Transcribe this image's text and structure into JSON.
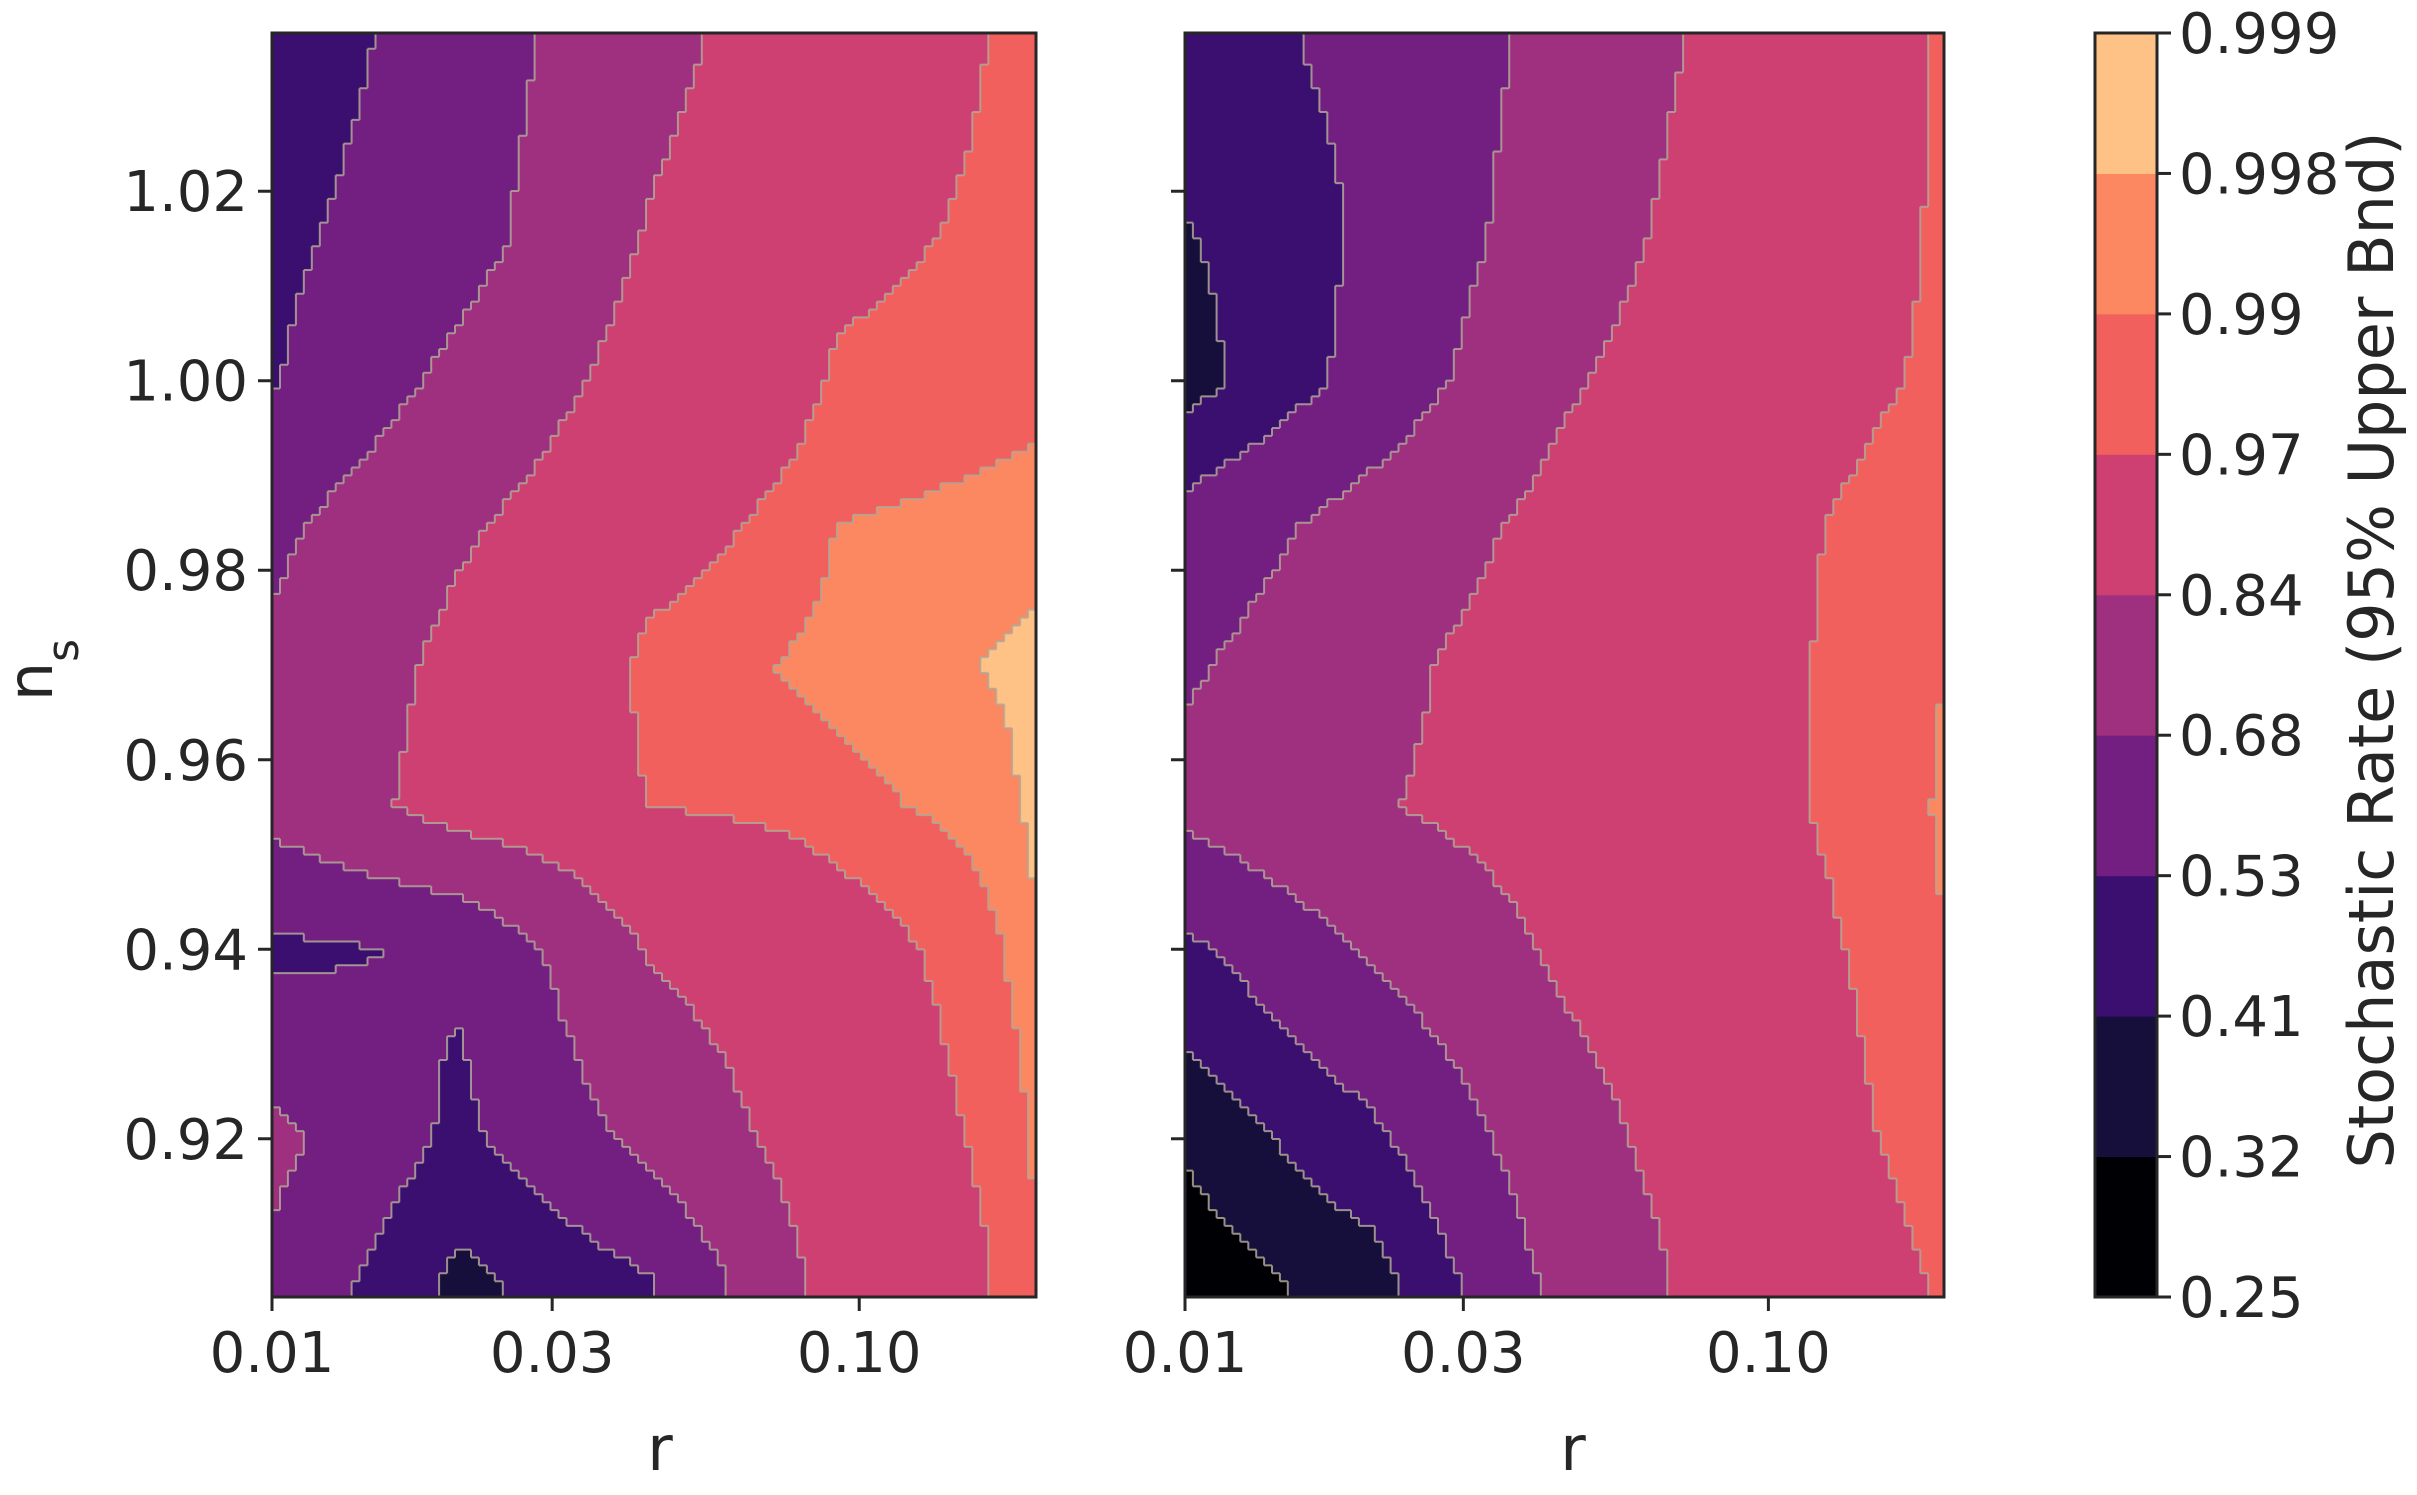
{
  "chart_data": [
    {
      "type": "heatmap",
      "subtype": "filled-contour",
      "panel": "left",
      "title": "",
      "xlabel": "r",
      "ylabel": "n_s",
      "x_scale": "log",
      "xlim": [
        0.01,
        0.2
      ],
      "ylim": [
        0.9033,
        1.0367
      ],
      "xticks": [
        {
          "value": 0.01,
          "label": "0.01"
        },
        {
          "value": 0.03,
          "label": "0.03"
        },
        {
          "value": 0.1,
          "label": "0.10"
        }
      ],
      "yticks": [
        {
          "value": 0.92,
          "label": "0.92"
        },
        {
          "value": 0.94,
          "label": "0.94"
        },
        {
          "value": 0.96,
          "label": "0.96"
        },
        {
          "value": 0.98,
          "label": "0.98"
        },
        {
          "value": 1.0,
          "label": "1.00"
        },
        {
          "value": 1.02,
          "label": "1.02"
        }
      ],
      "x": [
        0.01,
        0.0209,
        0.0437,
        0.0915,
        0.2
      ],
      "y": [
        0.905,
        0.92,
        0.94,
        0.955,
        0.97,
        0.985,
        1.0,
        1.015,
        1.035
      ],
      "values": [
        [
          0.65,
          0.38,
          0.52,
          0.9,
          0.99
        ],
        [
          0.72,
          0.5,
          0.72,
          0.93,
          0.992
        ],
        [
          0.5,
          0.55,
          0.85,
          0.95,
          0.998
        ],
        [
          0.73,
          0.9,
          0.97,
          0.985,
          0.9992
        ],
        [
          0.7,
          0.88,
          0.98,
          0.995,
          0.9993
        ],
        [
          0.65,
          0.82,
          0.95,
          0.99,
          0.996
        ],
        [
          0.52,
          0.72,
          0.9,
          0.975,
          0.985
        ],
        [
          0.5,
          0.62,
          0.85,
          0.96,
          0.98
        ],
        [
          0.45,
          0.6,
          0.8,
          0.94,
          0.98
        ]
      ]
    },
    {
      "type": "heatmap",
      "subtype": "filled-contour",
      "panel": "right",
      "title": "",
      "xlabel": "r",
      "ylabel": "",
      "x_scale": "log",
      "xlim": [
        0.01,
        0.2
      ],
      "ylim": [
        0.9033,
        1.0367
      ],
      "xticks": [
        {
          "value": 0.01,
          "label": "0.01"
        },
        {
          "value": 0.03,
          "label": "0.03"
        },
        {
          "value": 0.1,
          "label": "0.10"
        }
      ],
      "yticks": [
        {
          "value": 0.92,
          "label": ""
        },
        {
          "value": 0.94,
          "label": ""
        },
        {
          "value": 0.96,
          "label": ""
        },
        {
          "value": 0.98,
          "label": ""
        },
        {
          "value": 1.0,
          "label": ""
        },
        {
          "value": 1.02,
          "label": ""
        }
      ],
      "x": [
        0.01,
        0.0209,
        0.0437,
        0.0915,
        0.2
      ],
      "y": [
        0.905,
        0.92,
        0.94,
        0.955,
        0.97,
        0.985,
        1.0,
        1.015,
        1.035
      ],
      "values": [
        [
          0.27,
          0.36,
          0.72,
          0.92,
          0.975
        ],
        [
          0.33,
          0.5,
          0.78,
          0.94,
          0.985
        ],
        [
          0.5,
          0.7,
          0.86,
          0.95,
          0.99
        ],
        [
          0.72,
          0.83,
          0.9,
          0.96,
          0.992
        ],
        [
          0.66,
          0.8,
          0.92,
          0.96,
          0.99
        ],
        [
          0.58,
          0.74,
          0.88,
          0.96,
          0.985
        ],
        [
          0.36,
          0.58,
          0.82,
          0.95,
          0.975
        ],
        [
          0.4,
          0.55,
          0.76,
          0.93,
          0.975
        ],
        [
          0.48,
          0.56,
          0.72,
          0.9,
          0.975
        ]
      ]
    }
  ],
  "colorbar": {
    "label": "Stochastic Rate (95% Upper Bnd)",
    "levels": [
      0.25,
      0.32,
      0.41,
      0.53,
      0.68,
      0.84,
      0.97,
      0.99,
      0.998,
      0.999
    ],
    "tick_labels": [
      "0.25",
      "0.32",
      "0.41",
      "0.53",
      "0.68",
      "0.84",
      "0.97",
      "0.99",
      "0.998",
      "0.999"
    ],
    "colors": [
      "#000004",
      "#160f3b",
      "#3b0f70",
      "#721f81",
      "#9f2f7f",
      "#cd4071",
      "#f1605d",
      "#fb8861",
      "#fec287"
    ],
    "contour_line_color": "#b0a896"
  }
}
